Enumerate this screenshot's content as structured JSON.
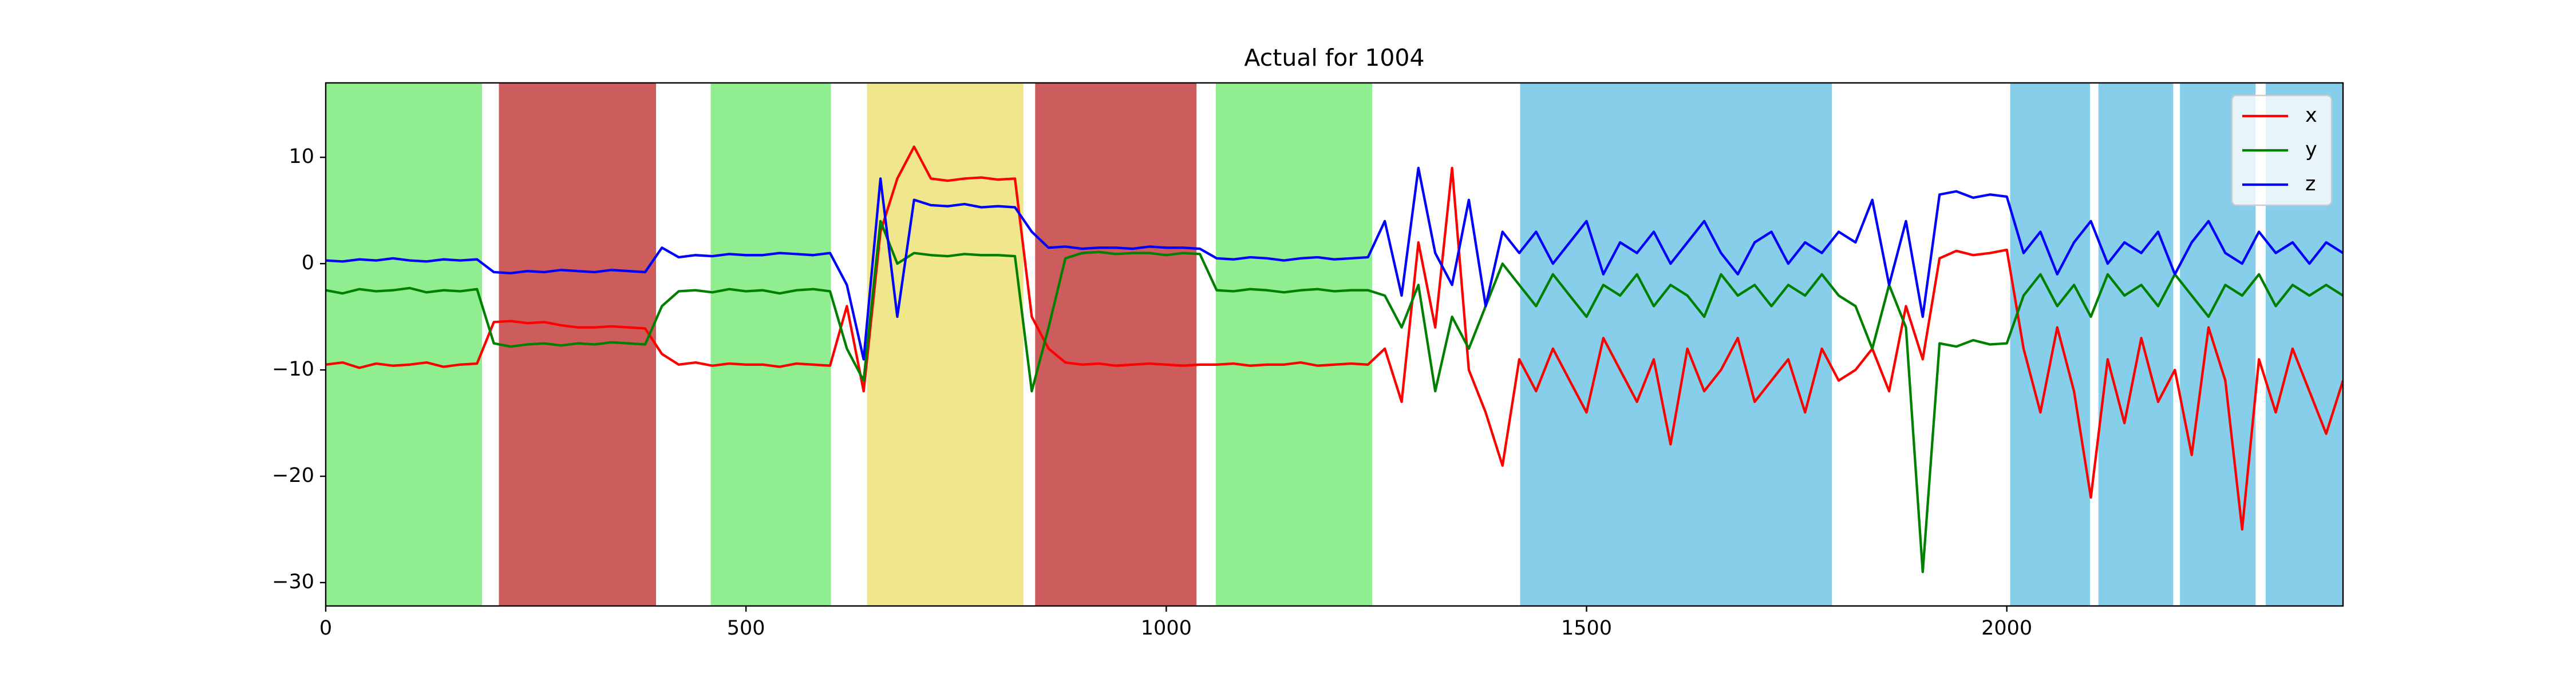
{
  "chart_data": {
    "type": "line",
    "title": "Actual for 1004",
    "x": [
      0,
      20,
      40,
      60,
      80,
      100,
      120,
      140,
      160,
      180,
      200,
      220,
      240,
      260,
      280,
      300,
      320,
      340,
      360,
      380,
      400,
      420,
      440,
      460,
      480,
      500,
      520,
      540,
      560,
      580,
      600,
      620,
      640,
      660,
      680,
      700,
      720,
      740,
      760,
      780,
      800,
      820,
      840,
      860,
      880,
      900,
      920,
      940,
      960,
      980,
      1000,
      1020,
      1040,
      1060,
      1080,
      1100,
      1120,
      1140,
      1160,
      1180,
      1200,
      1220,
      1240,
      1260,
      1280,
      1300,
      1320,
      1340,
      1360,
      1380,
      1400,
      1420,
      1440,
      1460,
      1480,
      1500,
      1520,
      1540,
      1560,
      1580,
      1600,
      1620,
      1640,
      1660,
      1680,
      1700,
      1720,
      1740,
      1760,
      1780,
      1800,
      1820,
      1840,
      1860,
      1880,
      1900,
      1920,
      1940,
      1960,
      1980,
      2000,
      2020,
      2040,
      2060,
      2080,
      2100,
      2120,
      2140,
      2160,
      2180,
      2200,
      2220,
      2240,
      2260,
      2280,
      2300,
      2320,
      2340,
      2360,
      2380,
      2400
    ],
    "series": [
      {
        "name": "x",
        "color": "#ff0000",
        "values": [
          -9.5,
          -9.3,
          -9.8,
          -9.4,
          -9.6,
          -9.5,
          -9.3,
          -9.7,
          -9.5,
          -9.4,
          -5.5,
          -5.4,
          -5.6,
          -5.5,
          -5.8,
          -6,
          -6,
          -5.9,
          -6,
          -6.1,
          -8.5,
          -9.5,
          -9.3,
          -9.6,
          -9.4,
          -9.5,
          -9.5,
          -9.7,
          -9.4,
          -9.5,
          -9.6,
          -4,
          -12,
          3,
          8,
          11,
          8,
          7.8,
          8,
          8.1,
          7.9,
          8,
          -5,
          -8,
          -9.3,
          -9.5,
          -9.4,
          -9.6,
          -9.5,
          -9.4,
          -9.5,
          -9.6,
          -9.5,
          -9.5,
          -9.4,
          -9.6,
          -9.5,
          -9.5,
          -9.3,
          -9.6,
          -9.5,
          -9.4,
          -9.5,
          -8,
          -13,
          2,
          -6,
          9,
          -10,
          -14,
          -19,
          -9,
          -12,
          -8,
          -11,
          -14,
          -7,
          -10,
          -13,
          -9,
          -17,
          -8,
          -12,
          -10,
          -7,
          -13,
          -11,
          -9,
          -14,
          -8,
          -11,
          -10,
          -8,
          -12,
          -4,
          -9,
          0.5,
          1.2,
          0.8,
          1,
          1.3,
          -8,
          -14,
          -6,
          -12,
          -22,
          -9,
          -15,
          -7,
          -13,
          -10,
          -18,
          -6,
          -11,
          -25,
          -9,
          -14,
          -8,
          -12,
          -16,
          -11
        ]
      },
      {
        "name": "y",
        "color": "#008000",
        "values": [
          -2.5,
          -2.8,
          -2.4,
          -2.6,
          -2.5,
          -2.3,
          -2.7,
          -2.5,
          -2.6,
          -2.4,
          -7.5,
          -7.8,
          -7.6,
          -7.5,
          -7.7,
          -7.5,
          -7.6,
          -7.4,
          -7.5,
          -7.6,
          -4,
          -2.6,
          -2.5,
          -2.7,
          -2.4,
          -2.6,
          -2.5,
          -2.8,
          -2.5,
          -2.4,
          -2.6,
          -8,
          -11,
          4,
          0,
          1,
          0.8,
          0.7,
          0.9,
          0.8,
          0.8,
          0.7,
          -12,
          -6,
          0.5,
          1,
          1.1,
          0.9,
          1,
          1,
          0.8,
          1,
          0.9,
          -2.5,
          -2.6,
          -2.4,
          -2.5,
          -2.7,
          -2.5,
          -2.4,
          -2.6,
          -2.5,
          -2.5,
          -3,
          -6,
          -2,
          -12,
          -5,
          -8,
          -4,
          0,
          -2,
          -4,
          -1,
          -3,
          -5,
          -2,
          -3,
          -1,
          -4,
          -2,
          -3,
          -5,
          -1,
          -3,
          -2,
          -4,
          -2,
          -3,
          -1,
          -3,
          -4,
          -8,
          -2,
          -6,
          -29,
          -7.5,
          -7.8,
          -7.2,
          -7.6,
          -7.5,
          -3,
          -1,
          -4,
          -2,
          -5,
          -1,
          -3,
          -2,
          -4,
          -1,
          -3,
          -5,
          -2,
          -3,
          -1,
          -4,
          -2,
          -3,
          -2,
          -3
        ]
      },
      {
        "name": "z",
        "color": "#0000ff",
        "values": [
          0.3,
          0.2,
          0.4,
          0.3,
          0.5,
          0.3,
          0.2,
          0.4,
          0.3,
          0.4,
          -0.8,
          -0.9,
          -0.7,
          -0.8,
          -0.6,
          -0.7,
          -0.8,
          -0.6,
          -0.7,
          -0.8,
          1.5,
          0.6,
          0.8,
          0.7,
          0.9,
          0.8,
          0.8,
          1,
          0.9,
          0.8,
          1,
          -2,
          -9,
          8,
          -5,
          6,
          5.5,
          5.4,
          5.6,
          5.3,
          5.4,
          5.3,
          3,
          1.5,
          1.6,
          1.4,
          1.5,
          1.5,
          1.4,
          1.6,
          1.5,
          1.5,
          1.4,
          0.5,
          0.4,
          0.6,
          0.5,
          0.3,
          0.5,
          0.6,
          0.4,
          0.5,
          0.6,
          4,
          -3,
          9,
          1,
          -2,
          6,
          -4,
          3,
          1,
          3,
          0,
          2,
          4,
          -1,
          2,
          1,
          3,
          0,
          2,
          4,
          1,
          -1,
          2,
          3,
          0,
          2,
          1,
          3,
          2,
          6,
          -2,
          4,
          -5,
          6.5,
          6.8,
          6.2,
          6.5,
          6.3,
          1,
          3,
          -1,
          2,
          4,
          0,
          2,
          1,
          3,
          -1,
          2,
          4,
          1,
          0,
          3,
          1,
          2,
          0,
          2,
          1
        ]
      }
    ],
    "spans": [
      {
        "start": 0,
        "end": 186,
        "color": "#90ee90"
      },
      {
        "start": 206,
        "end": 393,
        "color": "#cd5c5c"
      },
      {
        "start": 458,
        "end": 601,
        "color": "#90ee90"
      },
      {
        "start": 644,
        "end": 830,
        "color": "#f0e68c"
      },
      {
        "start": 844,
        "end": 1036,
        "color": "#cd5c5c"
      },
      {
        "start": 1059,
        "end": 1245,
        "color": "#90ee90"
      },
      {
        "start": 1421,
        "end": 1792,
        "color": "#87ceeb"
      },
      {
        "start": 2004,
        "end": 2099,
        "color": "#87ceeb"
      },
      {
        "start": 2109,
        "end": 2198,
        "color": "#87ceeb"
      },
      {
        "start": 2206,
        "end": 2296,
        "color": "#87ceeb"
      },
      {
        "start": 2308,
        "end": 2400,
        "color": "#87ceeb"
      }
    ],
    "xlim": [
      0,
      2400
    ],
    "xticks": [
      0,
      500,
      1000,
      1500,
      2000
    ],
    "ylim": [
      -32.2,
      17.0
    ],
    "yticks": [
      {
        "value": -30,
        "label": "−30"
      },
      {
        "value": -20,
        "label": "−20"
      },
      {
        "value": -10,
        "label": "−10"
      },
      0,
      10
    ],
    "legend": "upper right"
  }
}
